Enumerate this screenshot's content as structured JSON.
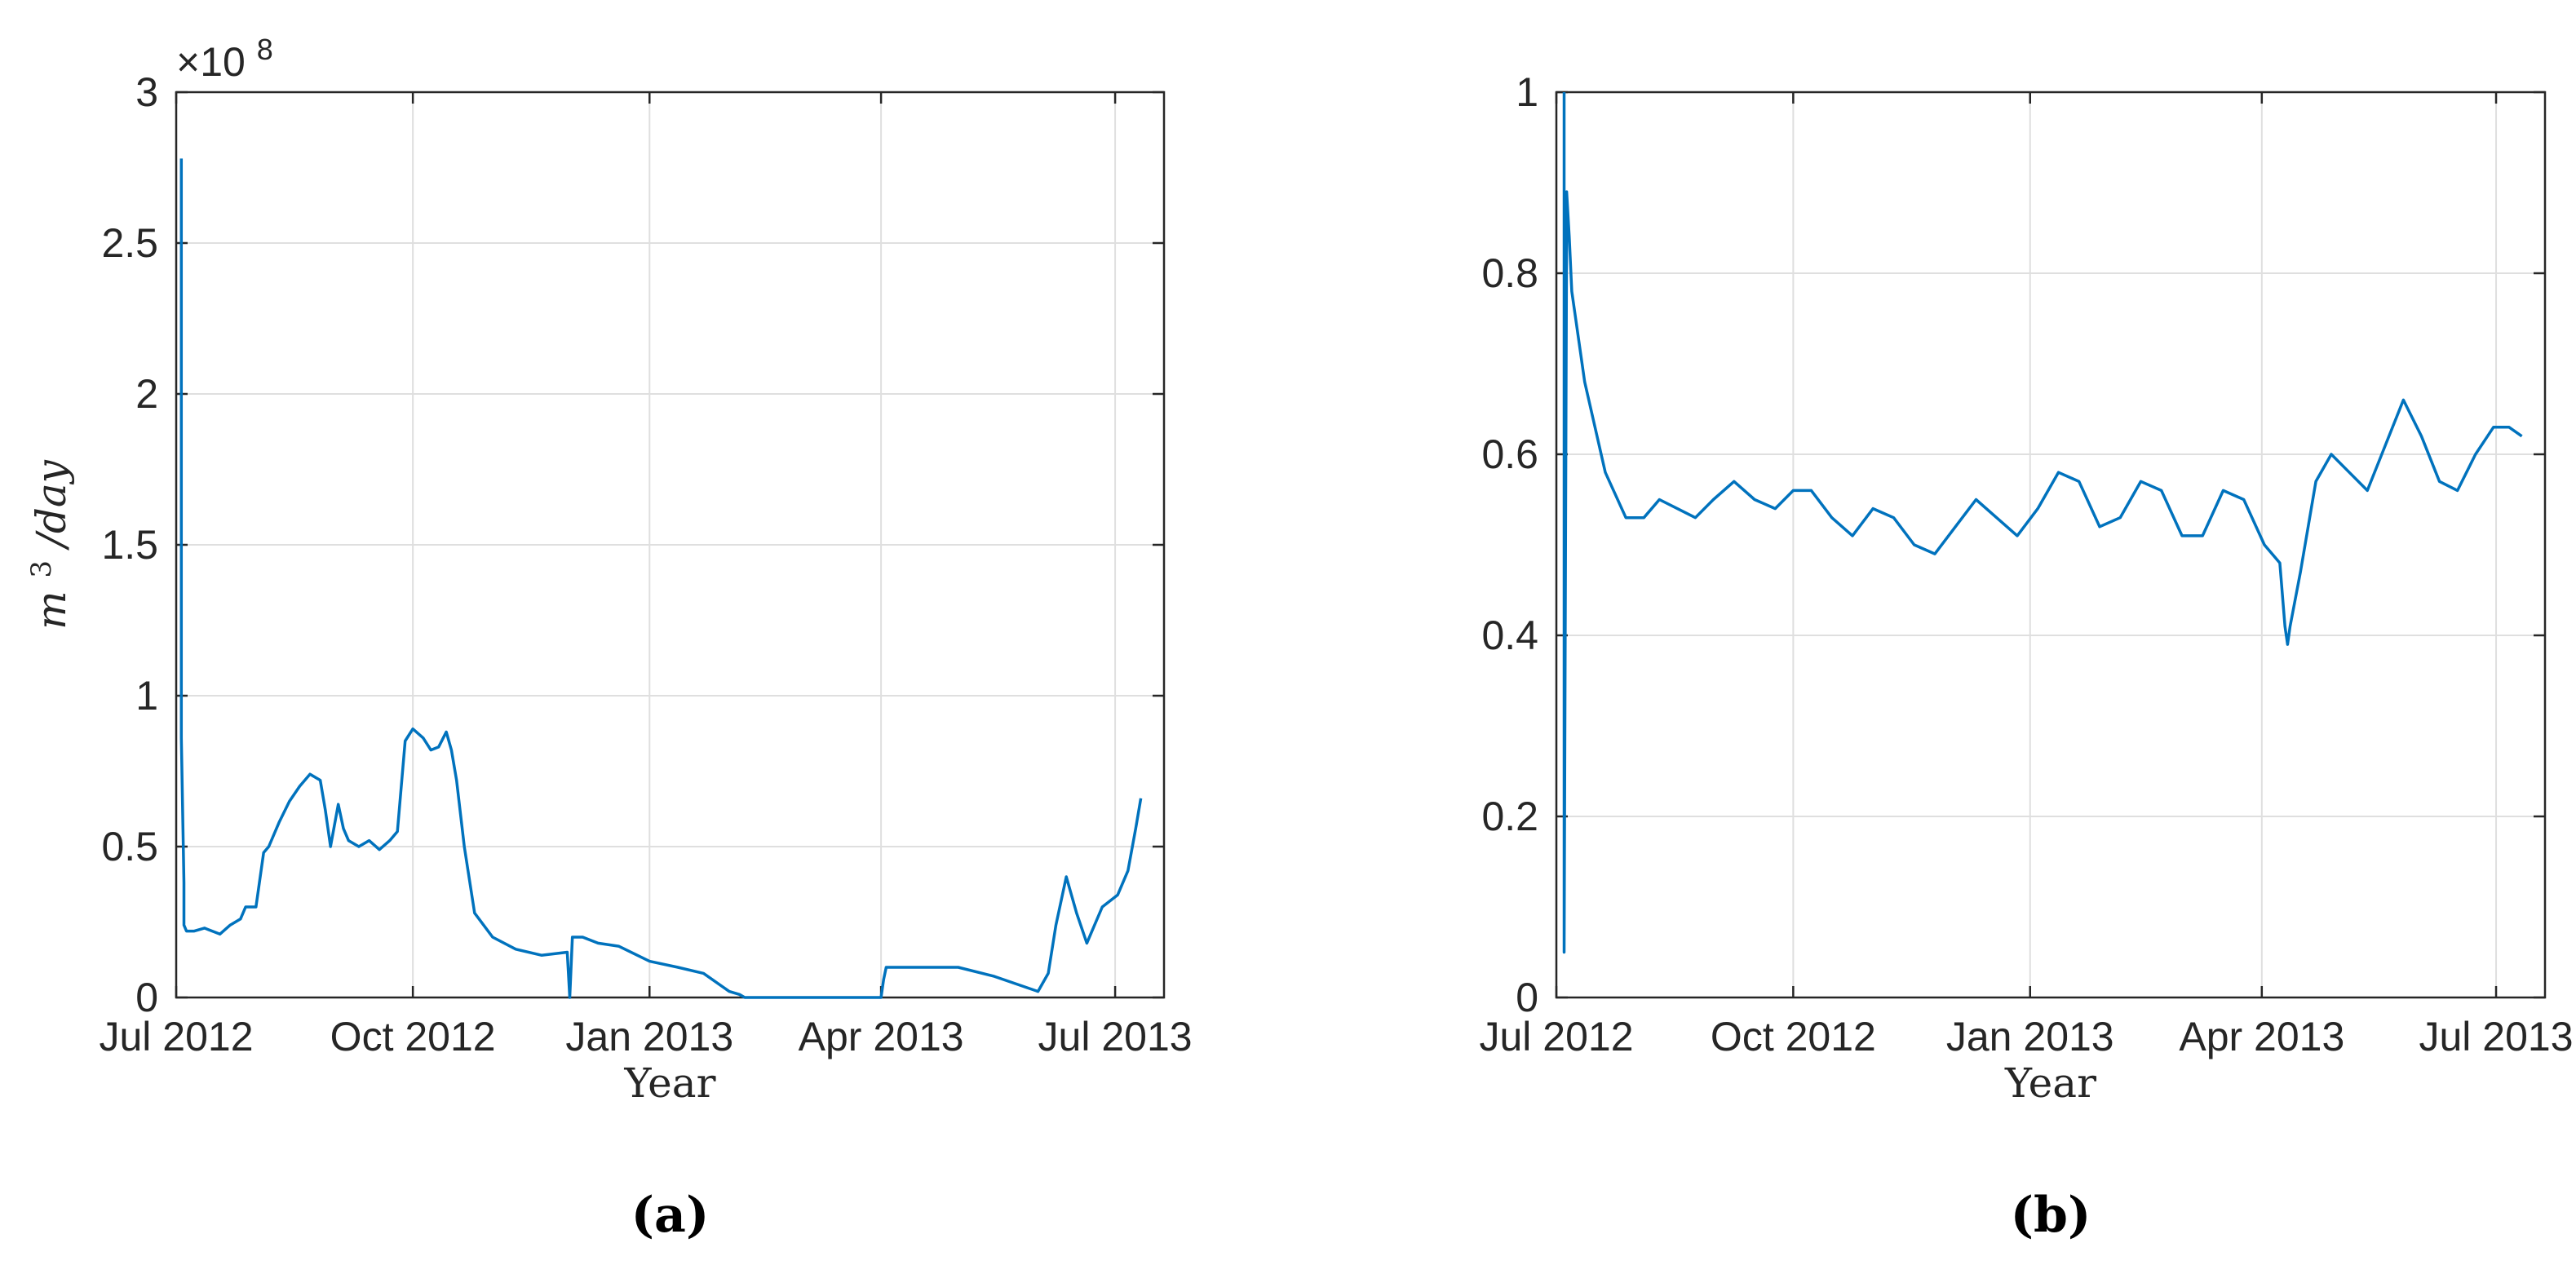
{
  "chart_data": [
    {
      "type": "line",
      "panel_label": "(a)",
      "xlabel": "Year",
      "ylabel_base": "m",
      "ylabel_sup": "3",
      "ylabel_rest": "/day",
      "y_multiplier_base": "×10",
      "y_multiplier_exp": "8",
      "ylim": [
        0,
        3
      ],
      "xlim": [
        "2012-07-01",
        "2013-07-20"
      ],
      "y_ticks": [
        "0",
        "0.5",
        "1",
        "1.5",
        "2",
        "2.5",
        "3"
      ],
      "x_ticks": [
        "Jul 2012",
        "Oct 2012",
        "Jan 2013",
        "Apr 2013",
        "Jul 2013"
      ],
      "grid": true,
      "color": "#0072BD",
      "series": [
        {
          "x": [
            "2012-07-03",
            "2012-07-03",
            "2012-07-04",
            "2012-07-04",
            "2012-07-05",
            "2012-07-06",
            "2012-07-08",
            "2012-07-12",
            "2012-07-18",
            "2012-07-22",
            "2012-07-26",
            "2012-07-28",
            "2012-08-01",
            "2012-08-04",
            "2012-08-06",
            "2012-08-10",
            "2012-08-14",
            "2012-08-18",
            "2012-08-22",
            "2012-08-26",
            "2012-08-28",
            "2012-08-30",
            "2012-09-02",
            "2012-09-04",
            "2012-09-06",
            "2012-09-10",
            "2012-09-14",
            "2012-09-18",
            "2012-09-22",
            "2012-09-25",
            "2012-09-28",
            "2012-10-01",
            "2012-10-05",
            "2012-10-08",
            "2012-10-11",
            "2012-10-14",
            "2012-10-16",
            "2012-10-18",
            "2012-10-21",
            "2012-10-25",
            "2012-11-01",
            "2012-11-10",
            "2012-11-20",
            "2012-11-30",
            "2012-12-01",
            "2012-12-02",
            "2012-12-06",
            "2012-12-12",
            "2012-12-20",
            "2013-01-01",
            "2013-01-12",
            "2013-01-22",
            "2013-02-01",
            "2013-02-05",
            "2013-02-07",
            "2013-02-15",
            "2013-03-01",
            "2013-03-15",
            "2013-04-01",
            "2013-04-02",
            "2013-04-03",
            "2013-04-20",
            "2013-05-01",
            "2013-05-15",
            "2013-06-01",
            "2013-06-05",
            "2013-06-08",
            "2013-06-12",
            "2013-06-16",
            "2013-06-20",
            "2013-06-26",
            "2013-07-02",
            "2013-07-06",
            "2013-07-09",
            "2013-07-11"
          ],
          "y": [
            2.78,
            0.86,
            0.38,
            0.24,
            0.22,
            0.22,
            0.22,
            0.23,
            0.21,
            0.24,
            0.26,
            0.3,
            0.3,
            0.48,
            0.5,
            0.58,
            0.65,
            0.7,
            0.74,
            0.72,
            0.62,
            0.5,
            0.64,
            0.56,
            0.52,
            0.5,
            0.52,
            0.49,
            0.52,
            0.55,
            0.85,
            0.89,
            0.86,
            0.82,
            0.83,
            0.88,
            0.82,
            0.72,
            0.5,
            0.28,
            0.2,
            0.16,
            0.14,
            0.15,
            0.0,
            0.2,
            0.2,
            0.18,
            0.17,
            0.12,
            0.1,
            0.08,
            0.02,
            0.01,
            0.0,
            0.0,
            0.0,
            0.0,
            0.0,
            0.06,
            0.1,
            0.1,
            0.1,
            0.07,
            0.02,
            0.08,
            0.24,
            0.4,
            0.28,
            0.18,
            0.3,
            0.34,
            0.42,
            0.56,
            0.66
          ]
        }
      ]
    },
    {
      "type": "line",
      "panel_label": "(b)",
      "xlabel": "Year",
      "ylim": [
        0,
        1
      ],
      "xlim": [
        "2012-07-01",
        "2013-07-20"
      ],
      "y_ticks": [
        "0",
        "0.2",
        "0.4",
        "0.6",
        "0.8",
        "1"
      ],
      "x_ticks": [
        "Jul 2012",
        "Oct 2012",
        "Jan 2013",
        "Apr 2013",
        "Jul 2013"
      ],
      "grid": true,
      "color": "#0072BD",
      "series": [
        {
          "x": [
            "2012-07-04",
            "2012-07-04",
            "2012-07-05",
            "2012-07-05",
            "2012-07-06",
            "2012-07-07",
            "2012-07-12",
            "2012-07-20",
            "2012-07-28",
            "2012-08-04",
            "2012-08-10",
            "2012-08-17",
            "2012-08-24",
            "2012-08-31",
            "2012-09-08",
            "2012-09-16",
            "2012-09-24",
            "2012-10-01",
            "2012-10-08",
            "2012-10-16",
            "2012-10-24",
            "2012-11-01",
            "2012-11-09",
            "2012-11-17",
            "2012-11-25",
            "2012-12-03",
            "2012-12-11",
            "2012-12-19",
            "2012-12-27",
            "2013-01-04",
            "2013-01-12",
            "2013-01-20",
            "2013-01-28",
            "2013-02-05",
            "2013-02-13",
            "2013-02-21",
            "2013-03-01",
            "2013-03-09",
            "2013-03-17",
            "2013-03-25",
            "2013-04-02",
            "2013-04-08",
            "2013-04-10",
            "2013-04-11",
            "2013-04-12",
            "2013-04-16",
            "2013-04-22",
            "2013-04-28",
            "2013-05-05",
            "2013-05-12",
            "2013-05-19",
            "2013-05-26",
            "2013-06-02",
            "2013-06-09",
            "2013-06-16",
            "2013-06-23",
            "2013-06-30",
            "2013-07-06",
            "2013-07-11"
          ],
          "y": [
            1.0,
            0.05,
            0.85,
            0.89,
            0.84,
            0.78,
            0.68,
            0.58,
            0.53,
            0.53,
            0.55,
            0.54,
            0.53,
            0.55,
            0.57,
            0.55,
            0.54,
            0.56,
            0.56,
            0.53,
            0.51,
            0.54,
            0.53,
            0.5,
            0.49,
            0.52,
            0.55,
            0.53,
            0.51,
            0.54,
            0.58,
            0.57,
            0.52,
            0.53,
            0.57,
            0.56,
            0.51,
            0.51,
            0.56,
            0.55,
            0.5,
            0.48,
            0.41,
            0.39,
            0.41,
            0.47,
            0.57,
            0.6,
            0.58,
            0.56,
            0.61,
            0.66,
            0.62,
            0.57,
            0.56,
            0.6,
            0.63,
            0.63,
            0.62
          ]
        }
      ]
    }
  ]
}
